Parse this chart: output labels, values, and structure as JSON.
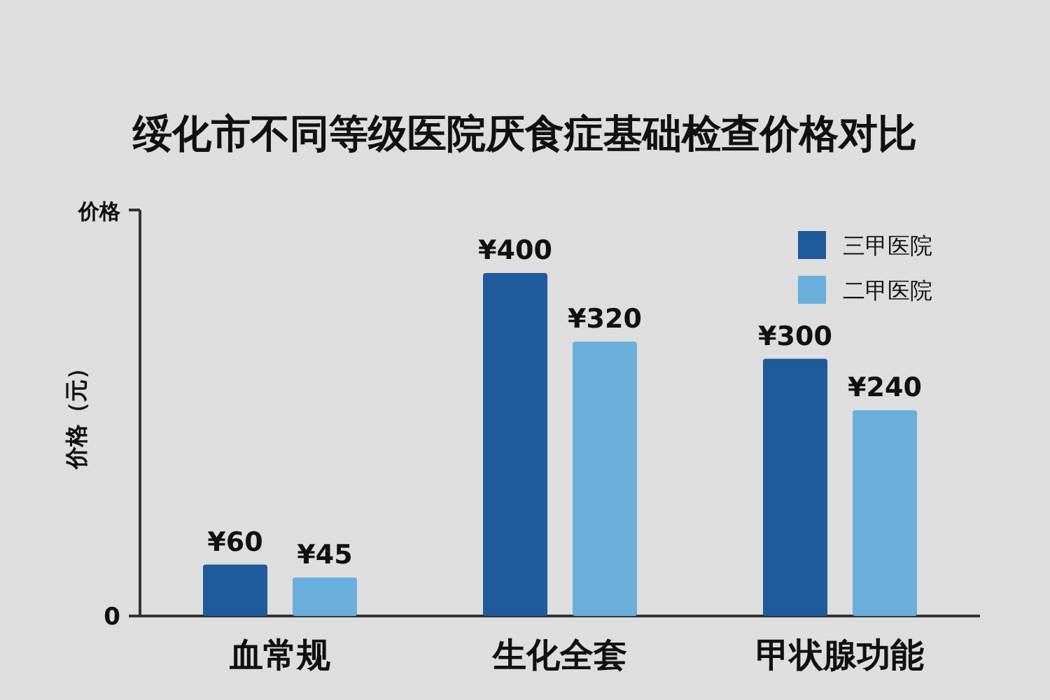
{
  "chart_data": {
    "type": "bar",
    "title": "绥化市不同等级医院厌食症基础检查价格对比",
    "ylabel": "价格（元）",
    "annotations": [
      "价格",
      "0"
    ],
    "categories": [
      "血常规",
      "生化全套",
      "甲状腺功能"
    ],
    "series": [
      {
        "name": "三甲医院",
        "color": "#1f5a9a",
        "values": [
          60,
          400,
          300
        ],
        "value_labels": [
          "¥60",
          "¥400",
          "¥300"
        ]
      },
      {
        "name": "二甲医院",
        "color": "#6aaedb",
        "values": [
          45,
          320,
          240
        ],
        "value_labels": [
          "¥45",
          "¥320",
          "¥240"
        ]
      }
    ],
    "legend": "top right"
  }
}
